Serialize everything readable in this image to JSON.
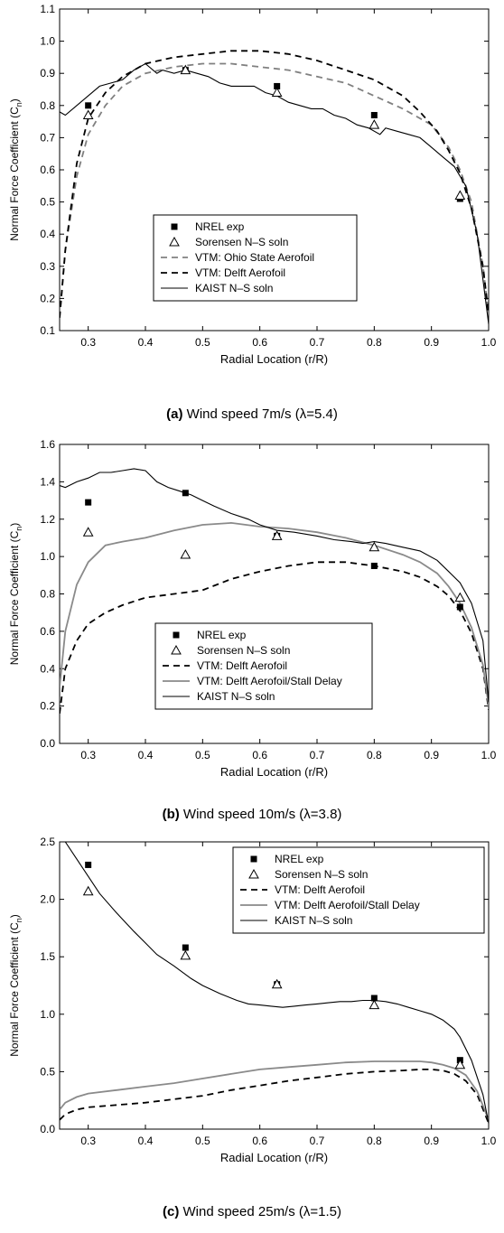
{
  "chart_data": [
    {
      "type": "line",
      "caption_label": "(a)",
      "caption_text": "Wind speed 7m/s (λ=5.4)",
      "xlabel": "Radial Location (r/R)",
      "ylabel": "Normal Force Coefficient (C",
      "ylabel_sub": "n",
      "ylabel_close": ")",
      "xlim": [
        0.25,
        1.0
      ],
      "ylim": [
        0.1,
        1.1
      ],
      "xticks": [
        "0.3",
        "0.4",
        "0.5",
        "0.6",
        "0.7",
        "0.8",
        "0.9",
        "1.0"
      ],
      "yticks": [
        "0.1",
        "0.2",
        "0.3",
        "0.4",
        "0.5",
        "0.6",
        "0.7",
        "0.8",
        "0.9",
        "1.0",
        "1.1"
      ],
      "legend_position": "lower-center",
      "series": [
        {
          "name": "NREL exp",
          "style": "marker-square",
          "x": [
            0.3,
            0.47,
            0.63,
            0.8,
            0.95
          ],
          "y": [
            0.8,
            0.91,
            0.86,
            0.77,
            0.51
          ]
        },
        {
          "name": "Sorensen N–S soln",
          "style": "marker-triangle",
          "x": [
            0.3,
            0.47,
            0.63,
            0.8,
            0.95
          ],
          "y": [
            0.77,
            0.91,
            0.84,
            0.74,
            0.52
          ]
        },
        {
          "name": "VTM: Ohio State Aerofoil",
          "style": "gray-dashed",
          "x": [
            0.25,
            0.26,
            0.28,
            0.3,
            0.33,
            0.36,
            0.4,
            0.45,
            0.5,
            0.55,
            0.6,
            0.65,
            0.7,
            0.75,
            0.8,
            0.85,
            0.9,
            0.93,
            0.95,
            0.97,
            0.99,
            1.0
          ],
          "y": [
            0.14,
            0.35,
            0.58,
            0.71,
            0.8,
            0.86,
            0.9,
            0.92,
            0.93,
            0.93,
            0.92,
            0.91,
            0.89,
            0.87,
            0.83,
            0.79,
            0.74,
            0.67,
            0.6,
            0.5,
            0.3,
            0.15
          ]
        },
        {
          "name": "VTM: Delft Aerofoil",
          "style": "black-dashed",
          "x": [
            0.25,
            0.26,
            0.28,
            0.3,
            0.33,
            0.36,
            0.4,
            0.45,
            0.5,
            0.55,
            0.6,
            0.65,
            0.7,
            0.75,
            0.8,
            0.85,
            0.88,
            0.91,
            0.93,
            0.95,
            0.97,
            0.99,
            1.0
          ],
          "y": [
            0.14,
            0.35,
            0.62,
            0.76,
            0.84,
            0.89,
            0.93,
            0.95,
            0.96,
            0.97,
            0.97,
            0.96,
            0.94,
            0.91,
            0.88,
            0.83,
            0.78,
            0.72,
            0.66,
            0.59,
            0.48,
            0.3,
            0.15
          ]
        },
        {
          "name": "KAIST N–S soln",
          "style": "black-solid",
          "x": [
            0.25,
            0.26,
            0.28,
            0.3,
            0.32,
            0.34,
            0.36,
            0.38,
            0.4,
            0.42,
            0.43,
            0.45,
            0.47,
            0.49,
            0.51,
            0.53,
            0.55,
            0.57,
            0.59,
            0.61,
            0.63,
            0.65,
            0.67,
            0.69,
            0.71,
            0.73,
            0.75,
            0.77,
            0.79,
            0.81,
            0.82,
            0.84,
            0.86,
            0.88,
            0.9,
            0.92,
            0.94,
            0.96,
            0.98,
            1.0
          ],
          "y": [
            0.78,
            0.77,
            0.8,
            0.83,
            0.86,
            0.87,
            0.88,
            0.91,
            0.93,
            0.9,
            0.91,
            0.9,
            0.91,
            0.9,
            0.89,
            0.87,
            0.86,
            0.86,
            0.86,
            0.84,
            0.83,
            0.81,
            0.8,
            0.79,
            0.79,
            0.77,
            0.76,
            0.74,
            0.73,
            0.71,
            0.73,
            0.72,
            0.71,
            0.7,
            0.67,
            0.64,
            0.61,
            0.55,
            0.4,
            0.12
          ]
        }
      ]
    },
    {
      "type": "line",
      "caption_label": "(b)",
      "caption_text": "Wind speed 10m/s (λ=3.8)",
      "xlabel": "Radial Location (r/R)",
      "ylabel": "Normal Force Coefficient (C",
      "ylabel_sub": "n",
      "ylabel_close": ")",
      "xlim": [
        0.25,
        1.0
      ],
      "ylim": [
        0.0,
        1.6
      ],
      "xticks": [
        "0.3",
        "0.4",
        "0.5",
        "0.6",
        "0.7",
        "0.8",
        "0.9",
        "1.0"
      ],
      "yticks": [
        "0.0",
        "0.2",
        "0.4",
        "0.6",
        "0.8",
        "1.0",
        "1.2",
        "1.4",
        "1.6"
      ],
      "legend_position": "lower-center",
      "series": [
        {
          "name": "NREL exp",
          "style": "marker-square",
          "x": [
            0.3,
            0.47,
            0.63,
            0.8,
            0.95
          ],
          "y": [
            1.29,
            1.34,
            1.11,
            0.95,
            0.73
          ]
        },
        {
          "name": "Sorensen N–S soln",
          "style": "marker-triangle",
          "x": [
            0.3,
            0.47,
            0.63,
            0.8,
            0.95
          ],
          "y": [
            1.13,
            1.01,
            1.11,
            1.05,
            0.78
          ]
        },
        {
          "name": "VTM: Delft Aerofoil",
          "style": "black-dashed",
          "x": [
            0.25,
            0.26,
            0.28,
            0.3,
            0.33,
            0.36,
            0.4,
            0.45,
            0.5,
            0.55,
            0.6,
            0.65,
            0.7,
            0.75,
            0.8,
            0.85,
            0.88,
            0.91,
            0.93,
            0.95,
            0.97,
            0.99,
            1.0
          ],
          "y": [
            0.16,
            0.4,
            0.55,
            0.64,
            0.7,
            0.74,
            0.78,
            0.8,
            0.82,
            0.88,
            0.92,
            0.95,
            0.97,
            0.97,
            0.95,
            0.92,
            0.89,
            0.84,
            0.79,
            0.71,
            0.59,
            0.4,
            0.18
          ]
        },
        {
          "name": "VTM: Delft Aerofoil/Stall Delay",
          "style": "gray-solid",
          "x": [
            0.25,
            0.26,
            0.28,
            0.3,
            0.33,
            0.36,
            0.4,
            0.45,
            0.5,
            0.55,
            0.6,
            0.65,
            0.7,
            0.75,
            0.8,
            0.85,
            0.88,
            0.91,
            0.93,
            0.95,
            0.97,
            0.99,
            1.0
          ],
          "y": [
            0.3,
            0.6,
            0.85,
            0.97,
            1.06,
            1.08,
            1.1,
            1.14,
            1.17,
            1.18,
            1.16,
            1.15,
            1.13,
            1.1,
            1.06,
            1.01,
            0.97,
            0.91,
            0.84,
            0.75,
            0.62,
            0.42,
            0.2
          ]
        },
        {
          "name": "KAIST N–S soln",
          "style": "black-solid",
          "x": [
            0.25,
            0.26,
            0.28,
            0.3,
            0.32,
            0.34,
            0.36,
            0.38,
            0.4,
            0.42,
            0.44,
            0.46,
            0.48,
            0.5,
            0.52,
            0.55,
            0.58,
            0.6,
            0.63,
            0.66,
            0.7,
            0.73,
            0.76,
            0.78,
            0.8,
            0.82,
            0.85,
            0.88,
            0.91,
            0.93,
            0.95,
            0.97,
            0.99,
            1.0
          ],
          "y": [
            1.38,
            1.37,
            1.4,
            1.42,
            1.45,
            1.45,
            1.46,
            1.47,
            1.46,
            1.4,
            1.37,
            1.35,
            1.33,
            1.3,
            1.27,
            1.23,
            1.2,
            1.17,
            1.14,
            1.13,
            1.11,
            1.09,
            1.08,
            1.07,
            1.08,
            1.07,
            1.05,
            1.03,
            0.98,
            0.92,
            0.86,
            0.75,
            0.55,
            0.22
          ]
        }
      ]
    },
    {
      "type": "line",
      "caption_label": "(c)",
      "caption_text": "Wind speed 25m/s (λ=1.5)",
      "xlabel": "Radial Location (r/R)",
      "ylabel": "Normal Force Coefficient (C",
      "ylabel_sub": "n",
      "ylabel_close": ")",
      "xlim": [
        0.25,
        1.0
      ],
      "ylim": [
        0.0,
        2.5
      ],
      "xticks": [
        "0.3",
        "0.4",
        "0.5",
        "0.6",
        "0.7",
        "0.8",
        "0.9",
        "1.0"
      ],
      "yticks": [
        "0.0",
        "0.5",
        "1.0",
        "1.5",
        "2.0",
        "2.5"
      ],
      "legend_position": "top-right",
      "series": [
        {
          "name": "NREL exp",
          "style": "marker-square",
          "x": [
            0.3,
            0.47,
            0.63,
            0.8,
            0.95
          ],
          "y": [
            2.3,
            1.58,
            1.26,
            1.14,
            0.6
          ]
        },
        {
          "name": "Sorensen N–S soln",
          "style": "marker-triangle",
          "x": [
            0.3,
            0.47,
            0.63,
            0.8,
            0.95
          ],
          "y": [
            2.07,
            1.51,
            1.26,
            1.08,
            0.56
          ]
        },
        {
          "name": "VTM: Delft Aerofoil",
          "style": "black-dashed",
          "x": [
            0.25,
            0.26,
            0.28,
            0.3,
            0.35,
            0.4,
            0.45,
            0.5,
            0.55,
            0.6,
            0.65,
            0.7,
            0.75,
            0.8,
            0.85,
            0.88,
            0.9,
            0.92,
            0.94,
            0.96,
            0.98,
            1.0
          ],
          "y": [
            0.08,
            0.13,
            0.17,
            0.19,
            0.21,
            0.23,
            0.26,
            0.29,
            0.34,
            0.38,
            0.42,
            0.45,
            0.48,
            0.5,
            0.51,
            0.52,
            0.52,
            0.51,
            0.48,
            0.42,
            0.3,
            0.05
          ]
        },
        {
          "name": "VTM: Delft Aerofoil/Stall Delay",
          "style": "gray-solid",
          "x": [
            0.25,
            0.26,
            0.28,
            0.3,
            0.35,
            0.4,
            0.45,
            0.5,
            0.55,
            0.6,
            0.65,
            0.7,
            0.75,
            0.8,
            0.85,
            0.88,
            0.9,
            0.92,
            0.94,
            0.96,
            0.98,
            1.0
          ],
          "y": [
            0.17,
            0.23,
            0.28,
            0.31,
            0.34,
            0.37,
            0.4,
            0.44,
            0.48,
            0.52,
            0.54,
            0.56,
            0.58,
            0.59,
            0.59,
            0.59,
            0.58,
            0.56,
            0.53,
            0.47,
            0.33,
            0.08
          ]
        },
        {
          "name": "KAIST N–S soln",
          "style": "black-solid",
          "x": [
            0.26,
            0.28,
            0.3,
            0.32,
            0.35,
            0.38,
            0.4,
            0.42,
            0.45,
            0.48,
            0.5,
            0.53,
            0.56,
            0.58,
            0.6,
            0.62,
            0.64,
            0.66,
            0.68,
            0.7,
            0.72,
            0.74,
            0.76,
            0.78,
            0.8,
            0.82,
            0.84,
            0.86,
            0.88,
            0.9,
            0.92,
            0.94,
            0.95,
            0.97,
            0.99,
            1.0
          ],
          "y": [
            2.5,
            2.35,
            2.2,
            2.05,
            1.88,
            1.72,
            1.62,
            1.52,
            1.42,
            1.31,
            1.25,
            1.18,
            1.12,
            1.09,
            1.08,
            1.07,
            1.06,
            1.07,
            1.08,
            1.09,
            1.1,
            1.11,
            1.11,
            1.12,
            1.12,
            1.11,
            1.09,
            1.06,
            1.03,
            1.0,
            0.95,
            0.87,
            0.8,
            0.6,
            0.3,
            0.05
          ]
        }
      ]
    }
  ]
}
